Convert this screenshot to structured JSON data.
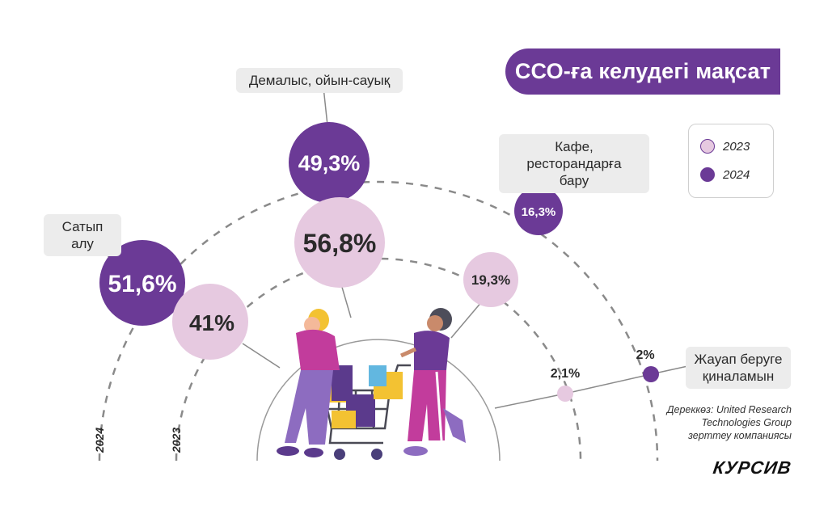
{
  "chart_data": {
    "type": "bubble",
    "title": "ССО-ға келудегі мақсат",
    "series": [
      {
        "name": "2023",
        "color": "#e6c9e0",
        "values": [
          41,
          56.8,
          19.3,
          2.1
        ],
        "value_labels": [
          "41%",
          "56,8%",
          "19,3%",
          "2,1%"
        ]
      },
      {
        "name": "2024",
        "color": "#6b3a96",
        "values": [
          51.6,
          49.3,
          16.3,
          2
        ],
        "value_labels": [
          "51,6%",
          "49,3%",
          "16,3%",
          "2%"
        ]
      }
    ],
    "categories": [
      "Сатып алу",
      "Демалыс, ойын-сауық",
      "Кафе, ресторандарға бару",
      "Жауап беруге қиналамын"
    ],
    "arc_labels": [
      "2024",
      "2023"
    ]
  },
  "labels": {
    "cat1": "Сатып алу",
    "cat2": "Демалыс, ойын-сауық",
    "cat3_line1": "Кафе, ресторандарға",
    "cat3_line2": "бару",
    "cat4_line1": "Жауап беруге",
    "cat4_line2": "қиналамын"
  },
  "legend": [
    {
      "label": "2023",
      "color": "#e6c9e0"
    },
    {
      "label": "2024",
      "color": "#6b3a96"
    }
  ],
  "source": {
    "line1": "Дереккөз: United Research",
    "line2": "Technologies Group",
    "line3": "зерттеу компаниясы"
  },
  "brand": "КУРСИВ"
}
